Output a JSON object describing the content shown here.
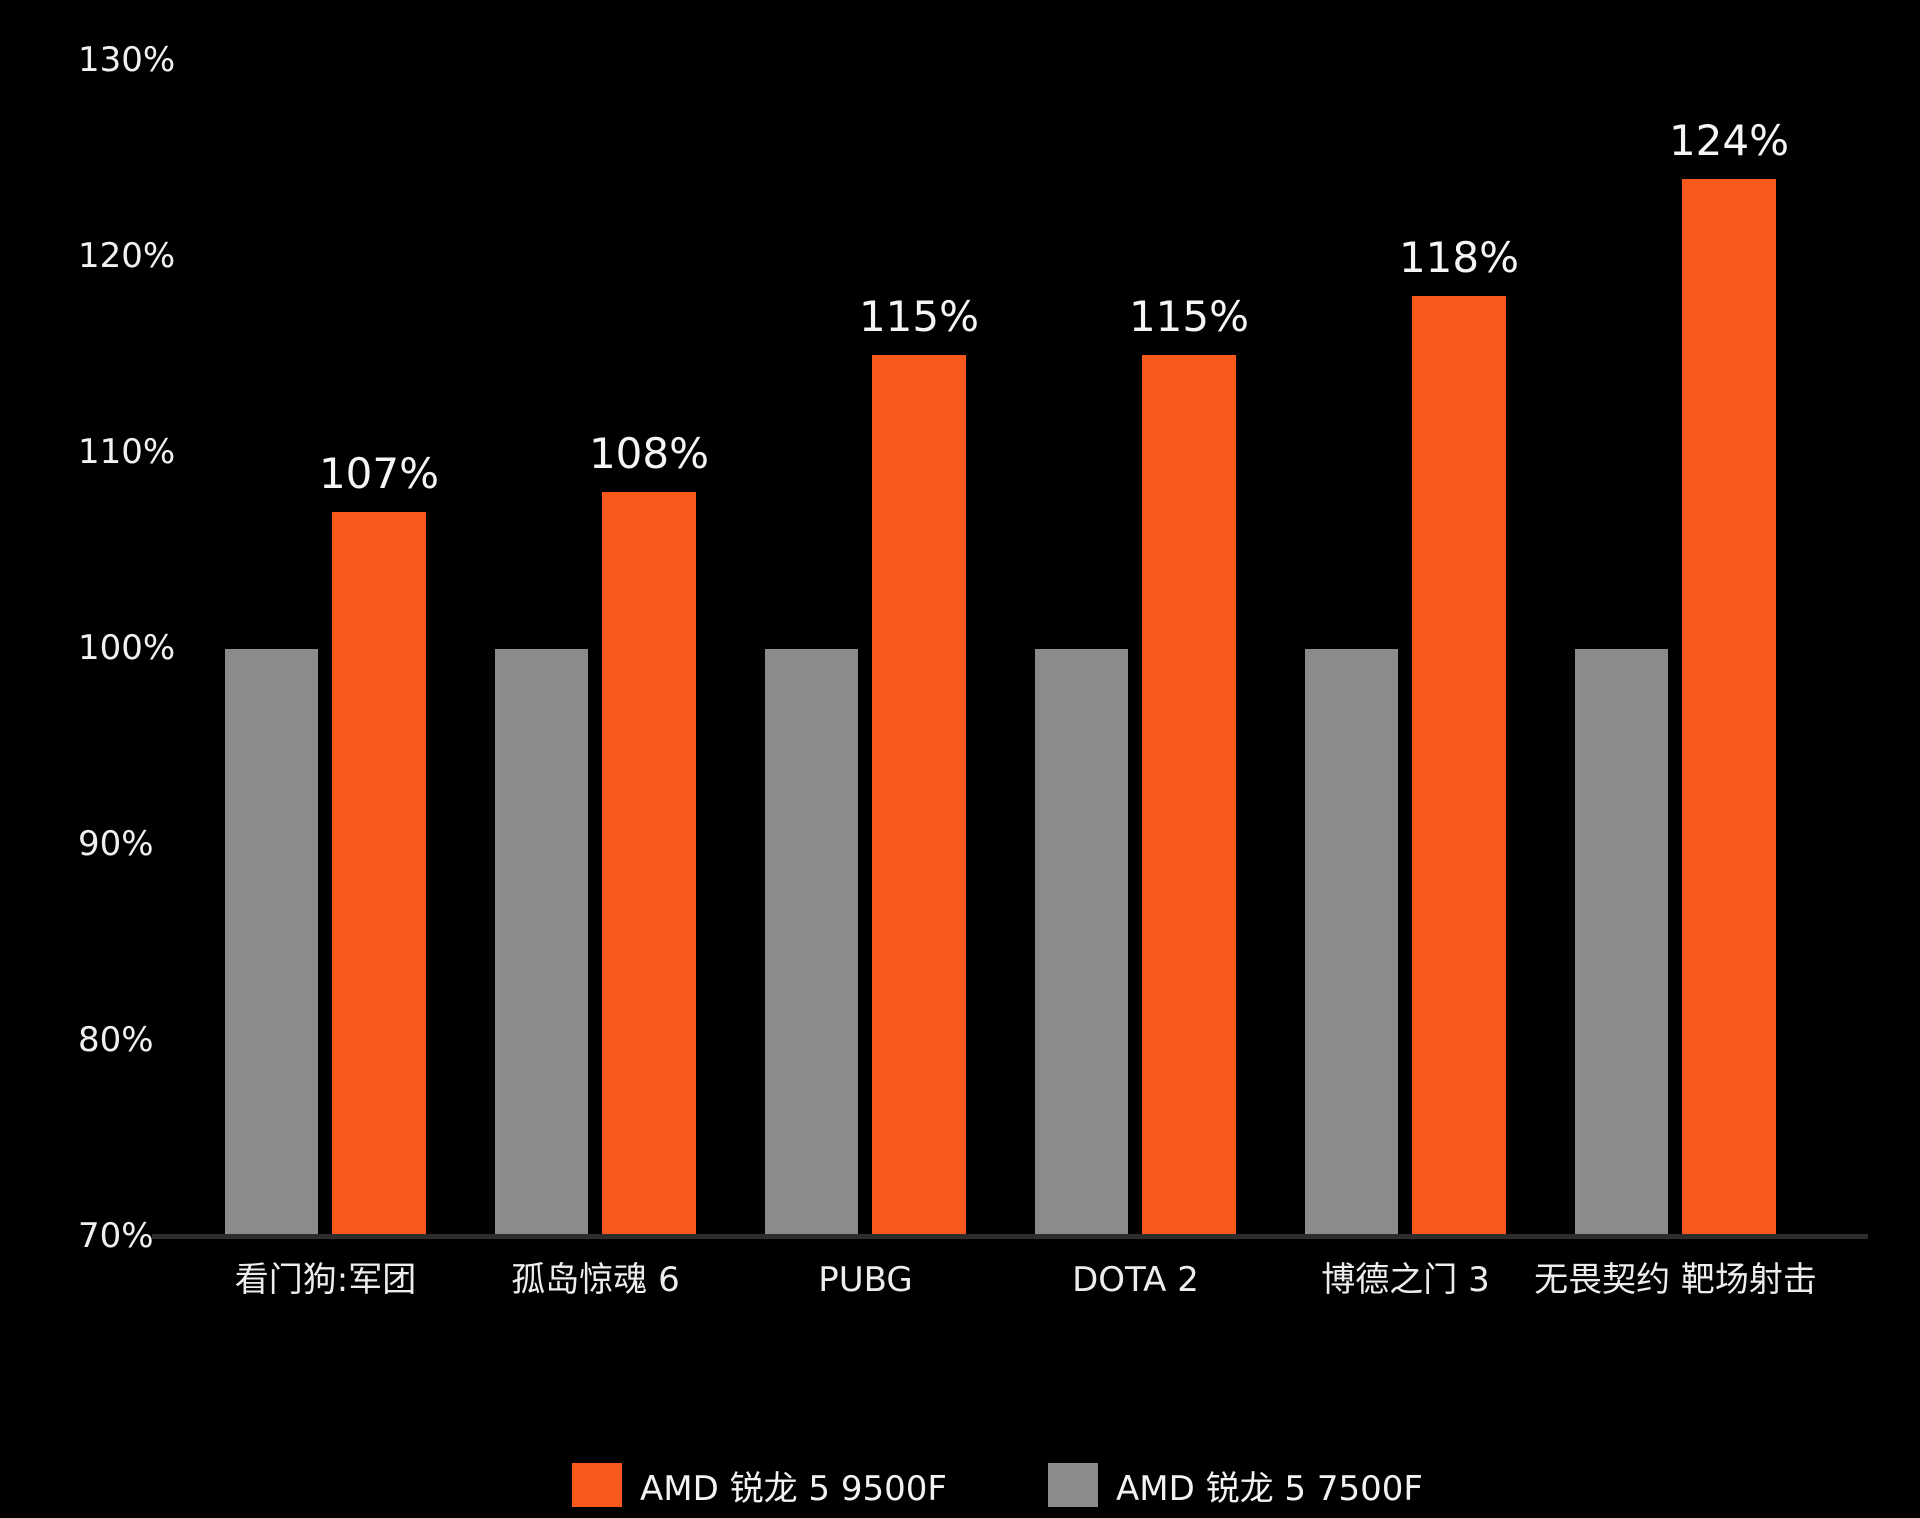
{
  "chart_data": {
    "type": "bar",
    "title": "",
    "xlabel": "",
    "ylabel": "",
    "ylim": [
      70,
      130
    ],
    "grid": false,
    "legend_position": "bottom-center",
    "categories": [
      "看门狗:军团",
      "孤岛惊魂 6",
      "PUBG",
      "DOTA 2",
      "博德之门 3",
      "无畏契约 靶场射击"
    ],
    "series": [
      {
        "name": "AMD 锐龙 5 9500F",
        "color": "#f95a1b",
        "values": [
          107,
          108,
          115,
          115,
          118,
          124
        ],
        "data_labels": [
          "107%",
          "108%",
          "115%",
          "115%",
          "118%",
          "124%"
        ]
      },
      {
        "name": "AMD 锐龙 5 7500F",
        "color": "#8b8b8b",
        "values": [
          100,
          100,
          100,
          100,
          100,
          100
        ],
        "data_labels": [
          "",
          "",
          "",
          "",
          "",
          ""
        ]
      }
    ],
    "yticks": [
      {
        "value": 70,
        "label": "70%"
      },
      {
        "value": 80,
        "label": "80%"
      },
      {
        "value": 90,
        "label": "90%"
      },
      {
        "value": 100,
        "label": "100%"
      },
      {
        "value": 110,
        "label": "110%"
      },
      {
        "value": 120,
        "label": "120%"
      },
      {
        "value": 130,
        "label": "130%"
      }
    ]
  },
  "legend": {
    "items": [
      {
        "label": "AMD 锐龙 5 9500F",
        "color": "#f95a1b"
      },
      {
        "label": "AMD 锐龙 5 7500F",
        "color": "#8b8b8b"
      }
    ]
  },
  "colors": {
    "background": "#000000",
    "axis_line": "#2d2d2d",
    "text": "#f0f0f0"
  }
}
